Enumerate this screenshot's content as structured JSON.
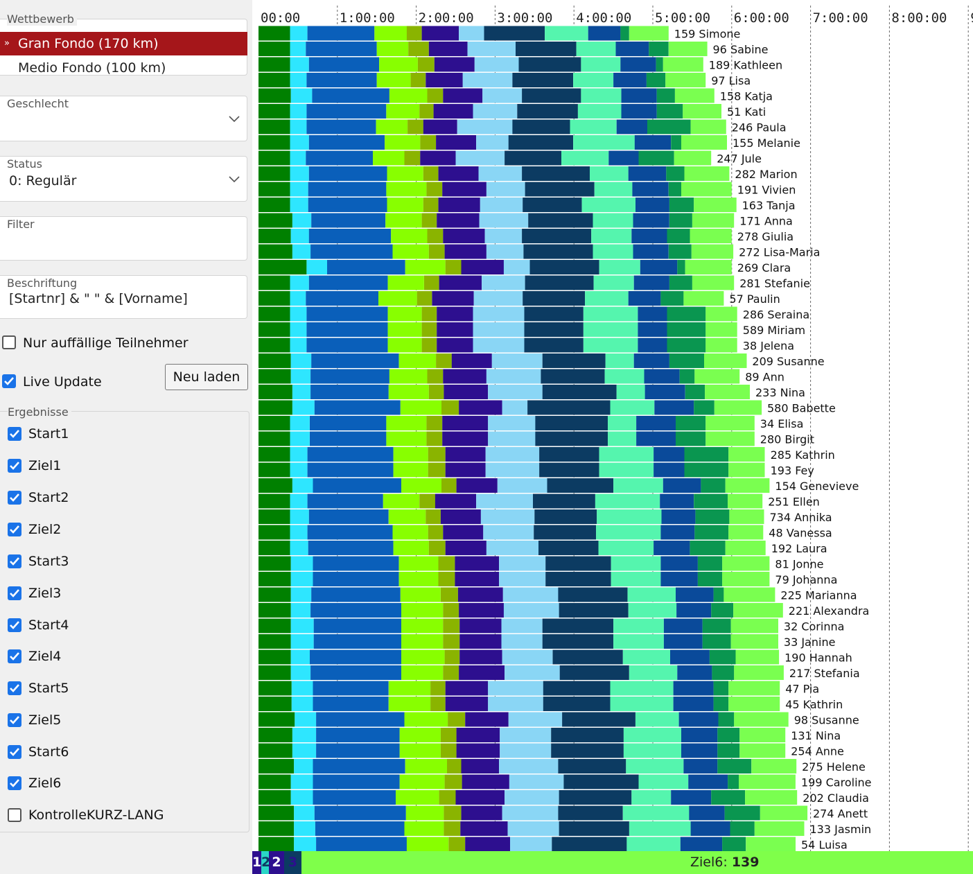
{
  "sidebar": {
    "wettbewerb_label": "Wettbewerb",
    "wettbewerb_items": [
      {
        "label": "Gran Fondo (170 km)",
        "selected": true
      },
      {
        "label": "Medio Fondo (100 km)",
        "selected": false
      }
    ],
    "selected_marker": "»",
    "geschlecht_label": "Geschlecht",
    "geschlecht_value": "",
    "status_label": "Status",
    "status_value": "0: Regulär",
    "filter_label": "Filter",
    "filter_value": "",
    "beschriftung_label": "Beschriftung",
    "beschriftung_value": "[Startnr] & \" \" & [Vorname]",
    "nur_auffaellige": {
      "label": "Nur auffällige Teilnehmer",
      "checked": false
    },
    "live_update": {
      "label": "Live Update",
      "checked": true
    },
    "reload_button": "Neu laden",
    "ergebnisse_label": "Ergebnisse",
    "ergebnisse": [
      {
        "label": "Start1",
        "checked": true
      },
      {
        "label": "Ziel1",
        "checked": true
      },
      {
        "label": "Start2",
        "checked": true
      },
      {
        "label": "Ziel2",
        "checked": true
      },
      {
        "label": "Start3",
        "checked": true
      },
      {
        "label": "Ziel3",
        "checked": true
      },
      {
        "label": "Start4",
        "checked": true
      },
      {
        "label": "Ziel4",
        "checked": true
      },
      {
        "label": "Start5",
        "checked": true
      },
      {
        "label": "Ziel5",
        "checked": true
      },
      {
        "label": "Start6",
        "checked": true
      },
      {
        "label": "Ziel6",
        "checked": true
      },
      {
        "label": "KontrolleKURZ-LANG",
        "checked": false
      }
    ]
  },
  "colors": {
    "selected_bg": "#a5161a",
    "checkbox": "#1a73e8",
    "status_bar": "#7fff4a",
    "segments": [
      "#008000",
      "#2ee6ff",
      "#0a5fba",
      "#88ff00",
      "#8ab400",
      "#2d0f8f",
      "#8ad6f5",
      "#0c3b62",
      "#55f5ae",
      "#0a4a9a",
      "#0a9650",
      "#7aff50"
    ]
  },
  "chart_data": {
    "type": "bar",
    "orientation": "horizontal",
    "stacked": true,
    "x_unit": "h:mm:ss",
    "xlim": [
      "0:00:00",
      "9:00:00"
    ],
    "x_ticks": [
      "00:00",
      "1:00:00",
      "2:00:00",
      "3:00:00",
      "4:00:00",
      "5:00:00",
      "6:00:00",
      "7:00:00",
      "8:00:00",
      "9"
    ],
    "segments": [
      "Ziel1",
      "Start2",
      "Ziel2",
      "Start3",
      "Ziel3",
      "Start4",
      "Ziel4",
      "Start5",
      "Ziel5",
      "Start6",
      "Ziel6",
      "Start1"
    ],
    "rows": [
      {
        "label": "159 Simone",
        "b": [
          0.4,
          0.22,
          0.85,
          0.41,
          0.19,
          0.47,
          0.32,
          0.77,
          0.55,
          0.41,
          0.11,
          0.5
        ]
      },
      {
        "label": "96 Sabine",
        "b": [
          0.4,
          0.2,
          0.9,
          0.4,
          0.26,
          0.49,
          0.61,
          0.77,
          0.5,
          0.42,
          0.25,
          0.49
        ]
      },
      {
        "label": "189 Kathleen",
        "b": [
          0.4,
          0.24,
          0.89,
          0.49,
          0.21,
          0.51,
          0.56,
          0.79,
          0.5,
          0.45,
          0.09,
          0.51
        ]
      },
      {
        "label": "97 Lisa",
        "b": [
          0.4,
          0.21,
          0.89,
          0.43,
          0.19,
          0.47,
          0.63,
          0.77,
          0.51,
          0.42,
          0.24,
          0.51
        ]
      },
      {
        "label": "158 Katja",
        "b": [
          0.41,
          0.27,
          0.98,
          0.48,
          0.2,
          0.5,
          0.5,
          0.75,
          0.51,
          0.45,
          0.23,
          0.5
        ]
      },
      {
        "label": "51 Kati",
        "b": [
          0.4,
          0.21,
          1.01,
          0.42,
          0.18,
          0.5,
          0.56,
          0.77,
          0.55,
          0.45,
          0.33,
          0.49
        ]
      },
      {
        "label": "246 Paula",
        "b": [
          0.4,
          0.21,
          0.88,
          0.4,
          0.2,
          0.43,
          0.7,
          0.73,
          0.59,
          0.39,
          0.55,
          0.45
        ]
      },
      {
        "label": "155 Melanie",
        "b": [
          0.4,
          0.24,
          0.96,
          0.45,
          0.2,
          0.51,
          0.41,
          0.82,
          0.78,
          0.46,
          0.13,
          0.58
        ]
      },
      {
        "label": "247 Jule",
        "b": [
          0.4,
          0.2,
          0.85,
          0.4,
          0.2,
          0.45,
          0.62,
          0.72,
          0.6,
          0.38,
          0.45,
          0.47
        ]
      },
      {
        "label": "282 Marion",
        "b": [
          0.4,
          0.24,
          0.99,
          0.46,
          0.19,
          0.51,
          0.55,
          0.86,
          0.49,
          0.48,
          0.23,
          0.57
        ]
      },
      {
        "label": "191 Vivien",
        "b": [
          0.4,
          0.23,
          0.99,
          0.51,
          0.2,
          0.56,
          0.49,
          0.88,
          0.48,
          0.46,
          0.16,
          0.64
        ]
      },
      {
        "label": "163 Tanja",
        "b": [
          0.4,
          0.23,
          1.0,
          0.46,
          0.19,
          0.53,
          0.54,
          0.75,
          0.68,
          0.43,
          0.31,
          0.54
        ]
      },
      {
        "label": "171 Anna",
        "b": [
          0.43,
          0.24,
          0.94,
          0.46,
          0.19,
          0.54,
          0.62,
          0.82,
          0.51,
          0.46,
          0.29,
          0.53
        ]
      },
      {
        "label": "278 Giulia",
        "b": [
          0.41,
          0.23,
          1.04,
          0.46,
          0.2,
          0.53,
          0.47,
          0.88,
          0.51,
          0.45,
          0.29,
          0.53
        ]
      },
      {
        "label": "272 Lisa-Maria",
        "b": [
          0.43,
          0.23,
          1.04,
          0.46,
          0.2,
          0.53,
          0.47,
          0.88,
          0.51,
          0.45,
          0.29,
          0.53
        ]
      },
      {
        "label": "269 Clara",
        "b": [
          0.61,
          0.26,
          0.99,
          0.51,
          0.2,
          0.54,
          0.33,
          0.88,
          0.52,
          0.47,
          0.1,
          0.59
        ]
      },
      {
        "label": "281 Stefanie",
        "b": [
          0.4,
          0.24,
          1.0,
          0.46,
          0.19,
          0.54,
          0.55,
          0.87,
          0.51,
          0.45,
          0.29,
          0.53
        ]
      },
      {
        "label": "57 Paulin",
        "b": [
          0.4,
          0.2,
          0.92,
          0.49,
          0.19,
          0.53,
          0.62,
          0.79,
          0.55,
          0.41,
          0.29,
          0.51
        ]
      },
      {
        "label": "286 Seraina",
        "b": [
          0.4,
          0.21,
          1.03,
          0.43,
          0.19,
          0.46,
          0.65,
          0.75,
          0.69,
          0.37,
          0.49,
          0.4
        ]
      },
      {
        "label": "589 Miriam",
        "b": [
          0.4,
          0.21,
          1.03,
          0.43,
          0.19,
          0.46,
          0.65,
          0.75,
          0.69,
          0.37,
          0.49,
          0.4
        ]
      },
      {
        "label": "38 Jelena",
        "b": [
          0.4,
          0.21,
          1.03,
          0.43,
          0.19,
          0.46,
          0.65,
          0.75,
          0.69,
          0.37,
          0.49,
          0.4
        ]
      },
      {
        "label": "209 Susanne",
        "b": [
          0.41,
          0.26,
          1.11,
          0.47,
          0.2,
          0.51,
          0.64,
          0.8,
          0.36,
          0.45,
          0.44,
          0.54
        ]
      },
      {
        "label": "89 Ann",
        "b": [
          0.41,
          0.25,
          1.0,
          0.48,
          0.2,
          0.55,
          0.69,
          0.81,
          0.5,
          0.45,
          0.19,
          0.57
        ]
      },
      {
        "label": "233 Nina",
        "b": [
          0.43,
          0.23,
          0.99,
          0.51,
          0.19,
          0.56,
          0.69,
          0.94,
          0.36,
          0.51,
          0.25,
          0.57
        ]
      },
      {
        "label": "580 Babette",
        "b": [
          0.43,
          0.28,
          1.09,
          0.52,
          0.22,
          0.55,
          0.32,
          1.05,
          0.56,
          0.5,
          0.26,
          0.6
        ]
      },
      {
        "label": "34 Elisa",
        "b": [
          0.4,
          0.25,
          0.97,
          0.51,
          0.2,
          0.58,
          0.6,
          0.92,
          0.36,
          0.5,
          0.38,
          0.62
        ]
      },
      {
        "label": "280 Birgit",
        "b": [
          0.4,
          0.25,
          0.97,
          0.51,
          0.2,
          0.58,
          0.6,
          0.92,
          0.36,
          0.5,
          0.38,
          0.62
        ]
      },
      {
        "label": "285 Kathrin",
        "b": [
          0.4,
          0.22,
          1.09,
          0.44,
          0.22,
          0.51,
          0.68,
          0.76,
          0.69,
          0.39,
          0.56,
          0.46
        ]
      },
      {
        "label": "193 Fey",
        "b": [
          0.4,
          0.22,
          1.09,
          0.44,
          0.22,
          0.51,
          0.68,
          0.76,
          0.69,
          0.39,
          0.56,
          0.46
        ]
      },
      {
        "label": "154 Genevieve",
        "b": [
          0.43,
          0.26,
          1.12,
          0.51,
          0.19,
          0.52,
          0.63,
          0.84,
          0.63,
          0.48,
          0.31,
          0.56
        ]
      },
      {
        "label": "251 Ellen",
        "b": [
          0.4,
          0.22,
          0.96,
          0.46,
          0.2,
          0.52,
          0.72,
          0.79,
          0.82,
          0.43,
          0.43,
          0.44
        ]
      },
      {
        "label": "734 Annika",
        "b": [
          0.4,
          0.24,
          1.01,
          0.47,
          0.19,
          0.51,
          0.68,
          0.79,
          0.82,
          0.43,
          0.43,
          0.44
        ]
      },
      {
        "label": "48 Vanessa",
        "b": [
          0.4,
          0.22,
          1.08,
          0.45,
          0.19,
          0.51,
          0.64,
          0.79,
          0.82,
          0.43,
          0.43,
          0.44
        ]
      },
      {
        "label": "192 Laura",
        "b": [
          0.4,
          0.23,
          1.08,
          0.45,
          0.21,
          0.52,
          0.66,
          0.76,
          0.7,
          0.46,
          0.45,
          0.51
        ]
      },
      {
        "label": "81 Jonne",
        "b": [
          0.41,
          0.28,
          1.09,
          0.5,
          0.21,
          0.56,
          0.59,
          0.83,
          0.63,
          0.47,
          0.31,
          0.6
        ]
      },
      {
        "label": "79 Johanna",
        "b": [
          0.41,
          0.28,
          1.09,
          0.5,
          0.21,
          0.56,
          0.59,
          0.83,
          0.63,
          0.47,
          0.31,
          0.6
        ]
      },
      {
        "label": "225 Marianna",
        "b": [
          0.41,
          0.26,
          1.13,
          0.51,
          0.22,
          0.57,
          0.7,
          0.88,
          0.61,
          0.48,
          0.13,
          0.65
        ]
      },
      {
        "label": "221 Alexandra",
        "b": [
          0.41,
          0.25,
          1.15,
          0.53,
          0.2,
          0.57,
          0.7,
          0.88,
          0.61,
          0.44,
          0.28,
          0.63
        ]
      },
      {
        "label": "32 Corinna",
        "b": [
          0.41,
          0.29,
          1.11,
          0.53,
          0.21,
          0.53,
          0.52,
          0.9,
          0.64,
          0.49,
          0.36,
          0.6
        ]
      },
      {
        "label": "33 Janine",
        "b": [
          0.41,
          0.29,
          1.11,
          0.53,
          0.21,
          0.53,
          0.52,
          0.9,
          0.64,
          0.49,
          0.36,
          0.6
        ]
      },
      {
        "label": "190 Hannah",
        "b": [
          0.41,
          0.24,
          1.16,
          0.55,
          0.19,
          0.54,
          0.64,
          0.89,
          0.6,
          0.5,
          0.33,
          0.55
        ]
      },
      {
        "label": "217 Stefania",
        "b": [
          0.41,
          0.25,
          1.15,
          0.53,
          0.2,
          0.58,
          0.7,
          0.88,
          0.61,
          0.44,
          0.28,
          0.63
        ]
      },
      {
        "label": "47 Pia",
        "b": [
          0.42,
          0.27,
          0.96,
          0.53,
          0.19,
          0.54,
          0.7,
          0.85,
          0.8,
          0.51,
          0.19,
          0.65
        ]
      },
      {
        "label": "45 Kathrin",
        "b": [
          0.42,
          0.27,
          0.96,
          0.53,
          0.19,
          0.54,
          0.7,
          0.85,
          0.8,
          0.51,
          0.19,
          0.65
        ]
      },
      {
        "label": "98 Susanne",
        "b": [
          0.46,
          0.27,
          1.12,
          0.55,
          0.22,
          0.55,
          0.68,
          0.93,
          0.55,
          0.5,
          0.2,
          0.69
        ]
      },
      {
        "label": "131 Nina",
        "b": [
          0.43,
          0.3,
          1.06,
          0.52,
          0.2,
          0.55,
          0.65,
          0.92,
          0.73,
          0.46,
          0.28,
          0.58
        ]
      },
      {
        "label": "254 Anne",
        "b": [
          0.43,
          0.3,
          1.06,
          0.52,
          0.2,
          0.55,
          0.65,
          0.92,
          0.73,
          0.46,
          0.28,
          0.58
        ]
      },
      {
        "label": "275 Helene",
        "b": [
          0.45,
          0.24,
          1.17,
          0.53,
          0.18,
          0.48,
          0.75,
          0.86,
          0.73,
          0.43,
          0.43,
          0.57
        ]
      },
      {
        "label": "199 Caroline",
        "b": [
          0.41,
          0.28,
          1.1,
          0.57,
          0.22,
          0.6,
          0.69,
          0.95,
          0.63,
          0.5,
          0.14,
          0.72
        ]
      },
      {
        "label": "202 Claudia",
        "b": [
          0.41,
          0.28,
          1.05,
          0.55,
          0.21,
          0.62,
          0.69,
          0.92,
          0.5,
          0.51,
          0.43,
          0.66
        ]
      },
      {
        "label": "274 Anett",
        "b": [
          0.45,
          0.26,
          1.16,
          0.48,
          0.22,
          0.52,
          0.71,
          0.82,
          0.84,
          0.45,
          0.45,
          0.6
        ]
      },
      {
        "label": "133 Jasmin",
        "b": [
          0.45,
          0.27,
          1.13,
          0.5,
          0.21,
          0.6,
          0.65,
          0.89,
          0.78,
          0.5,
          0.31,
          0.63
        ]
      },
      {
        "label": "54 Luisa",
        "b": [
          0.45,
          0.28,
          1.15,
          0.53,
          0.21,
          0.57,
          0.53,
          0.95,
          0.68,
          0.53,
          0.3,
          0.63
        ]
      }
    ]
  },
  "status_bar": {
    "segments": [
      {
        "label": "1",
        "bg": "#2d0f8f",
        "fg": "#ffffff"
      },
      {
        "label": "2",
        "bg": "#2ad6c6",
        "fg": "#0c3b62"
      },
      {
        "label": "2",
        "bg": "#2d0f8f",
        "fg": "#ffffff"
      },
      {
        "label": "3",
        "bg": "#0c3b62",
        "fg": "#2d0f8f"
      }
    ],
    "text_label": "Ziel6:",
    "text_value": "139"
  }
}
